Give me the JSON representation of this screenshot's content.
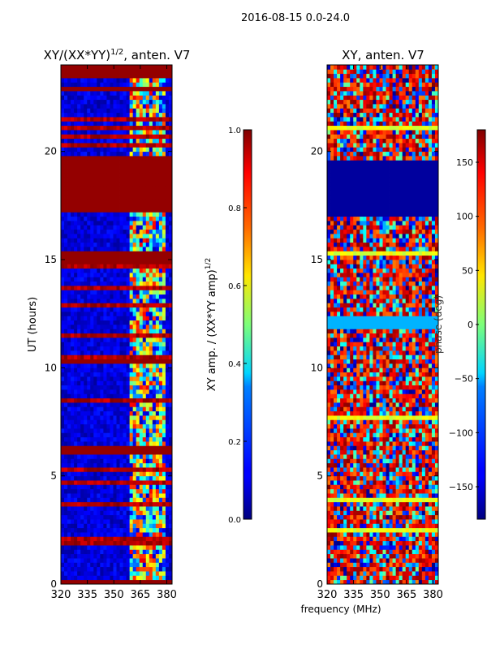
{
  "figure": {
    "suptitle": "2016-08-15 0.0-24.0",
    "xlabel_shared": "frequency (MHz)"
  },
  "chart_data": [
    {
      "type": "heatmap",
      "title_main": "XY/(XX*YY)",
      "title_sup": "1/2",
      "title_rest": ", anten. V7",
      "xlabel": "",
      "ylabel": "UT (hours)",
      "xlim": [
        320,
        383
      ],
      "ylim": [
        0,
        24
      ],
      "xticks": [
        "320",
        "335",
        "350",
        "365",
        "380"
      ],
      "xtick_values": [
        320,
        335,
        350,
        365,
        380
      ],
      "yticks": [
        "0",
        "5",
        "10",
        "15",
        "20"
      ],
      "ytick_values": [
        0,
        5,
        10,
        15,
        20
      ],
      "colorbar": {
        "label_main": "XY amp. / (XX*YY amp)",
        "label_sup": "1/2",
        "range": [
          0.0,
          1.0
        ],
        "ticks": [
          "0.0",
          "0.2",
          "0.4",
          "0.6",
          "0.8",
          "1.0"
        ],
        "tick_values": [
          0.0,
          0.2,
          0.4,
          0.6,
          0.8,
          1.0
        ]
      },
      "saturated_time_bands_hours": [
        [
          23.4,
          24.0
        ],
        [
          22.8,
          23.0
        ],
        [
          17.3,
          19.8
        ],
        [
          14.9,
          15.4
        ],
        [
          10.2,
          10.4
        ],
        [
          6.0,
          6.4
        ],
        [
          0.0,
          0.1
        ]
      ],
      "bright_frequency_band_mhz": [
        358,
        380
      ]
    },
    {
      "type": "heatmap",
      "title": "XY, anten. V7",
      "xlabel": "frequency (MHz)",
      "ylabel": "",
      "xlim": [
        320,
        383
      ],
      "ylim": [
        0,
        24
      ],
      "xticks": [
        "320",
        "335",
        "350",
        "365",
        "380"
      ],
      "xtick_values": [
        320,
        335,
        350,
        365,
        380
      ],
      "yticks": [
        "0",
        "5",
        "10",
        "15",
        "20"
      ],
      "ytick_values": [
        0,
        5,
        10,
        15,
        20
      ],
      "colorbar": {
        "label": "phase (deg)",
        "range": [
          -180,
          180
        ],
        "ticks": [
          "−150",
          "−100",
          "−50",
          "0",
          "50",
          "100",
          "150"
        ],
        "tick_values": [
          -150,
          -100,
          -50,
          0,
          50,
          100,
          150
        ]
      },
      "constant_phase_time_bands_hours": [
        [
          17.0,
          19.5
        ],
        [
          11.8,
          12.3
        ]
      ]
    }
  ]
}
